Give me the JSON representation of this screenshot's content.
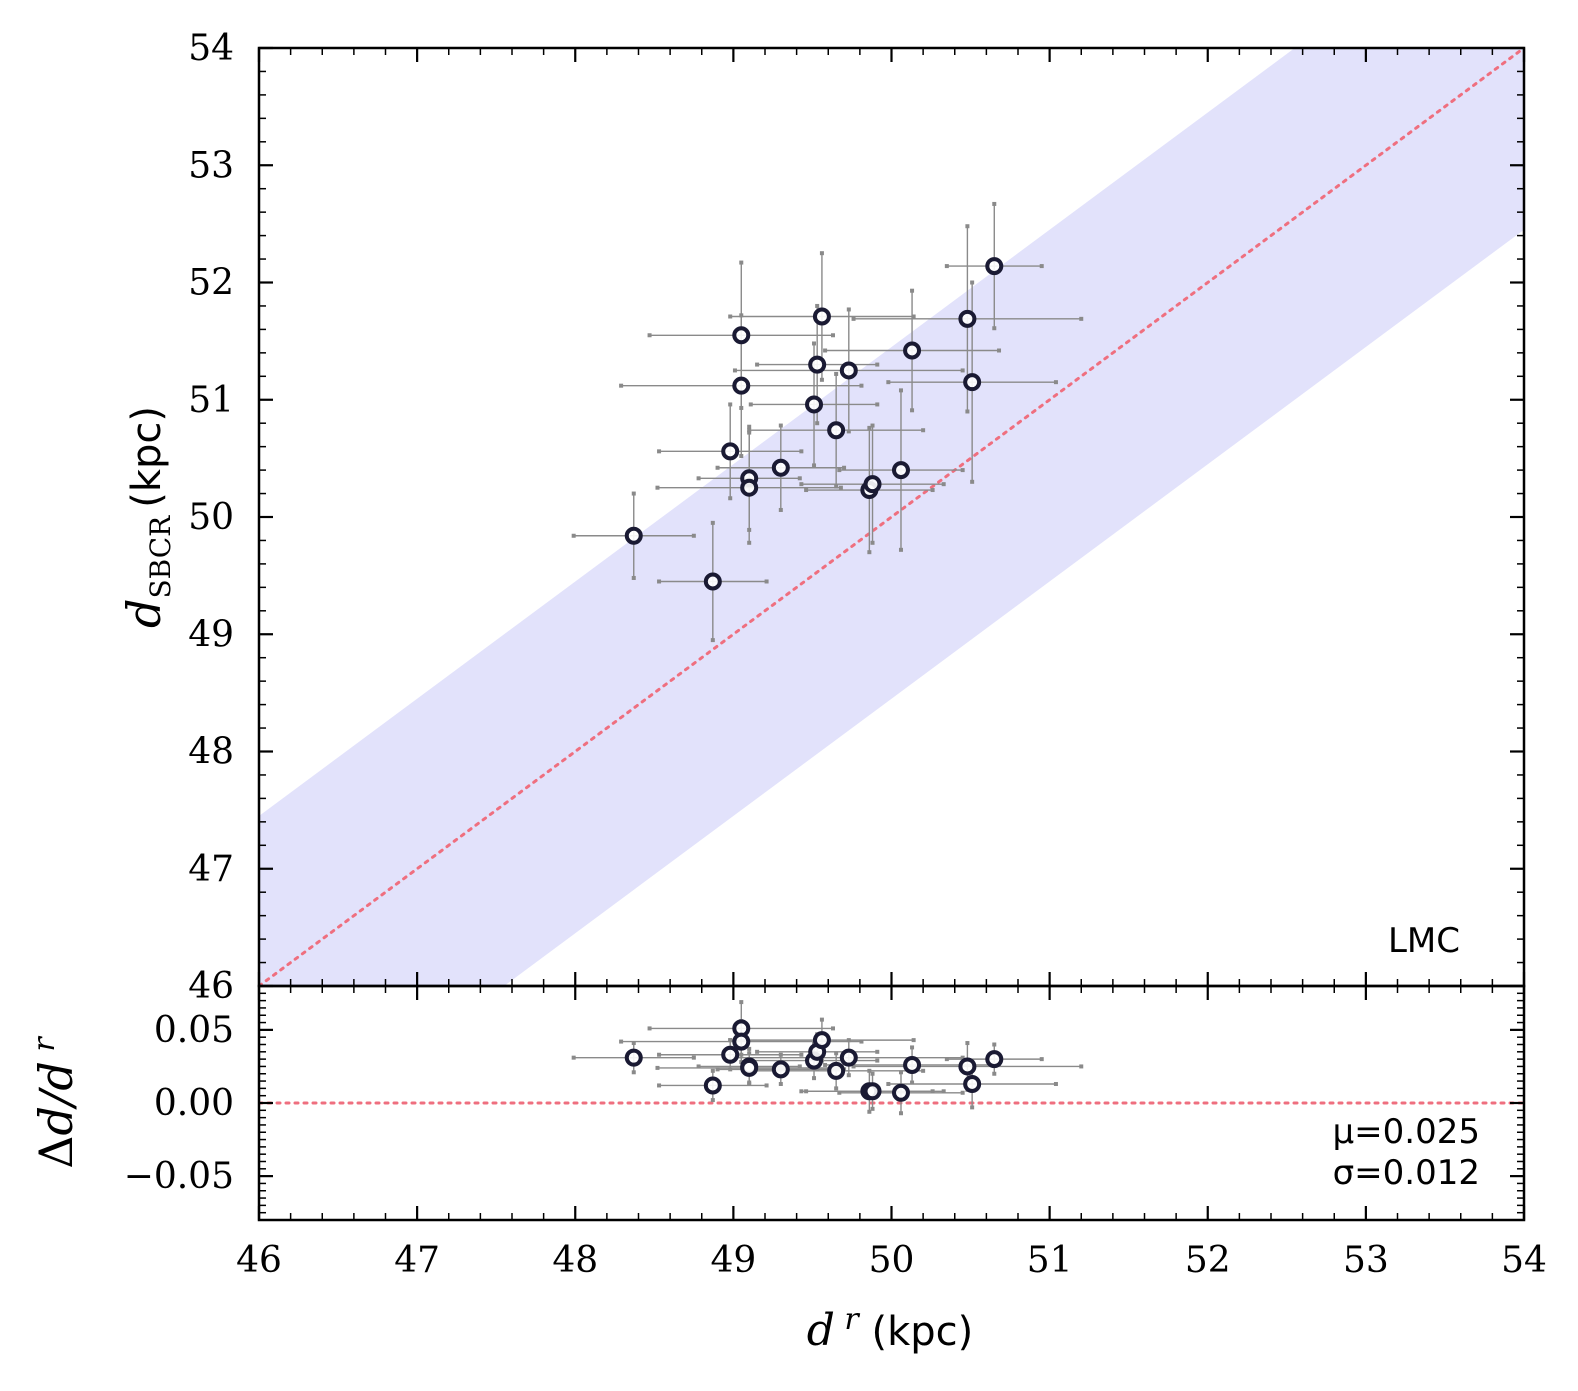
{
  "chart_data": [
    {
      "panel": "main",
      "type": "scatter",
      "xlabel": "d r (kpc)",
      "ylabel_main": "d",
      "ylabel_sub": "SBCR",
      "ylabel_unit": "(kpc)",
      "xlim": [
        46,
        54
      ],
      "ylim": [
        46,
        54
      ],
      "xticks": [
        "46",
        "47",
        "48",
        "49",
        "50",
        "51",
        "52",
        "53",
        "54"
      ],
      "yticks": [
        "46",
        "47",
        "48",
        "49",
        "50",
        "51",
        "52",
        "53",
        "54"
      ],
      "annotation": "LMC",
      "band": {
        "lower_offset": -1.55,
        "upper_offset": 1.45,
        "label": "band"
      },
      "reference_line": "y = x",
      "colors": {
        "band": "#e2e2fb",
        "line": "#ef6f7f",
        "marker": "#1a1a33",
        "errorbar": "#8a8a8a"
      },
      "points": [
        {
          "x": 48.37,
          "y": 49.84,
          "xerr": 0.38,
          "yerr": 0.36
        },
        {
          "x": 48.87,
          "y": 49.45,
          "xerr": 0.34,
          "yerr": 0.5
        },
        {
          "x": 48.98,
          "y": 50.56,
          "xerr": 0.45,
          "yerr": 0.4
        },
        {
          "x": 49.05,
          "y": 51.55,
          "xerr": 0.58,
          "yerr": 0.62
        },
        {
          "x": 49.05,
          "y": 51.12,
          "xerr": 0.76,
          "yerr": 0.6
        },
        {
          "x": 49.1,
          "y": 50.33,
          "xerr": 0.32,
          "yerr": 0.44
        },
        {
          "x": 49.1,
          "y": 50.25,
          "xerr": 0.58,
          "yerr": 0.47
        },
        {
          "x": 49.3,
          "y": 50.42,
          "xerr": 0.4,
          "yerr": 0.36
        },
        {
          "x": 49.51,
          "y": 50.96,
          "xerr": 0.4,
          "yerr": 0.52
        },
        {
          "x": 49.53,
          "y": 51.3,
          "xerr": 0.38,
          "yerr": 0.5
        },
        {
          "x": 49.56,
          "y": 51.71,
          "xerr": 0.58,
          "yerr": 0.54
        },
        {
          "x": 49.65,
          "y": 50.74,
          "xerr": 0.55,
          "yerr": 0.48
        },
        {
          "x": 49.73,
          "y": 51.25,
          "xerr": 0.72,
          "yerr": 0.52
        },
        {
          "x": 49.86,
          "y": 50.23,
          "xerr": 0.4,
          "yerr": 0.53
        },
        {
          "x": 49.88,
          "y": 50.28,
          "xerr": 0.45,
          "yerr": 0.5
        },
        {
          "x": 50.06,
          "y": 50.4,
          "xerr": 0.39,
          "yerr": 0.68
        },
        {
          "x": 50.13,
          "y": 51.42,
          "xerr": 0.55,
          "yerr": 0.51
        },
        {
          "x": 50.48,
          "y": 51.69,
          "xerr": 0.72,
          "yerr": 0.79
        },
        {
          "x": 50.51,
          "y": 51.15,
          "xerr": 0.53,
          "yerr": 0.85
        },
        {
          "x": 50.65,
          "y": 52.14,
          "xerr": 0.3,
          "yerr": 0.53
        }
      ]
    },
    {
      "panel": "residual",
      "type": "scatter",
      "ylabel": "Δd/d r",
      "xlim": [
        46,
        54
      ],
      "ylim": [
        -0.08,
        0.08
      ],
      "yticks": [
        "0.05",
        "0.00",
        "−0.05"
      ],
      "ytick_values": [
        0.05,
        0.0,
        -0.05
      ],
      "stats": {
        "mu": "μ=0.025",
        "sigma": "σ=0.012"
      },
      "reference_line": "y = 0",
      "points": [
        {
          "x": 48.37,
          "y": 0.031,
          "xerr": 0.38,
          "yerr": 0.01
        },
        {
          "x": 48.87,
          "y": 0.012,
          "xerr": 0.34,
          "yerr": 0.01
        },
        {
          "x": 48.98,
          "y": 0.033,
          "xerr": 0.45,
          "yerr": 0.01
        },
        {
          "x": 49.05,
          "y": 0.051,
          "xerr": 0.58,
          "yerr": 0.018
        },
        {
          "x": 49.05,
          "y": 0.042,
          "xerr": 0.76,
          "yerr": 0.014
        },
        {
          "x": 49.1,
          "y": 0.025,
          "xerr": 0.32,
          "yerr": 0.012
        },
        {
          "x": 49.1,
          "y": 0.024,
          "xerr": 0.58,
          "yerr": 0.01
        },
        {
          "x": 49.3,
          "y": 0.023,
          "xerr": 0.4,
          "yerr": 0.01
        },
        {
          "x": 49.51,
          "y": 0.029,
          "xerr": 0.4,
          "yerr": 0.012
        },
        {
          "x": 49.53,
          "y": 0.035,
          "xerr": 0.38,
          "yerr": 0.012
        },
        {
          "x": 49.56,
          "y": 0.043,
          "xerr": 0.58,
          "yerr": 0.014
        },
        {
          "x": 49.65,
          "y": 0.022,
          "xerr": 0.55,
          "yerr": 0.012
        },
        {
          "x": 49.73,
          "y": 0.031,
          "xerr": 0.72,
          "yerr": 0.012
        },
        {
          "x": 49.86,
          "y": 0.008,
          "xerr": 0.4,
          "yerr": 0.014
        },
        {
          "x": 49.88,
          "y": 0.008,
          "xerr": 0.45,
          "yerr": 0.012
        },
        {
          "x": 50.06,
          "y": 0.007,
          "xerr": 0.39,
          "yerr": 0.014
        },
        {
          "x": 50.13,
          "y": 0.026,
          "xerr": 0.55,
          "yerr": 0.012
        },
        {
          "x": 50.48,
          "y": 0.025,
          "xerr": 0.72,
          "yerr": 0.016
        },
        {
          "x": 50.51,
          "y": 0.013,
          "xerr": 0.53,
          "yerr": 0.016
        },
        {
          "x": 50.65,
          "y": 0.03,
          "xerr": 0.3,
          "yerr": 0.01
        }
      ]
    }
  ]
}
